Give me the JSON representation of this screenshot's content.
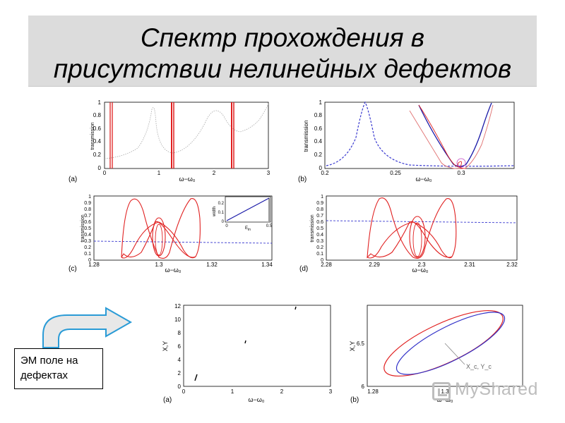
{
  "slide": {
    "title_line1": "Спектр прохождения в",
    "title_line2": "присутствии нелинейных дефектов",
    "em_label_line1": "ЭМ поле на",
    "em_label_line2": "дефектах",
    "watermark": "MyShared",
    "arrow_icon": "curved-arrow-right-icon"
  },
  "colors": {
    "red": "#e02020",
    "blue": "#1a1aa8",
    "dashed_blue": "#3a3ad0",
    "gray": "#9a9a9a"
  },
  "panels": {
    "a": {
      "label": "(a)",
      "ylabel": "transmission",
      "xlabel": "ω−ω₀",
      "xticks": [
        "0",
        "1",
        "2",
        "3"
      ],
      "yticks": [
        "0",
        "0.2",
        "0.4",
        "0.6",
        "0.8",
        "1"
      ]
    },
    "b": {
      "label": "(b)",
      "ylabel": "transmission",
      "xlabel": "ω−ω₀",
      "xticks": [
        "0.2",
        "0.25",
        "0.3"
      ],
      "yticks": [
        "0",
        "0.2",
        "0.4",
        "0.6",
        "0.8",
        "1"
      ]
    },
    "c": {
      "label": "(c)",
      "ylabel": "transmission",
      "xlabel": "ω−ω₀",
      "xticks": [
        "1.28",
        "1.3",
        "1.32",
        "1.34"
      ],
      "yticks": [
        "0",
        "0.1",
        "0.2",
        "0.3",
        "0.4",
        "0.5",
        "0.6",
        "0.7",
        "0.8",
        "0.9",
        "1"
      ],
      "inset": {
        "ylabel": "width",
        "xlabel": "E",
        "xlabel_sub": "in",
        "xticks": [
          "0",
          "0.5"
        ],
        "yticks": [
          "0",
          "0.1",
          "0.2"
        ]
      }
    },
    "d": {
      "label": "(d)",
      "ylabel": "transmission",
      "xlabel": "ω−ω₀",
      "xticks": [
        "2.28",
        "2.29",
        "2.3",
        "2.31",
        "2.32"
      ],
      "yticks": [
        "0",
        "0.1",
        "0.2",
        "0.3",
        "0.4",
        "0.5",
        "0.6",
        "0.7",
        "0.8",
        "0.9",
        "1"
      ]
    },
    "e": {
      "label": "(a)",
      "ylabel": "X,Y",
      "xlabel": "ω−ω₀",
      "xticks": [
        "0",
        "1",
        "2",
        "3"
      ],
      "yticks": [
        "0",
        "2",
        "4",
        "6",
        "8",
        "10",
        "12"
      ]
    },
    "f": {
      "label": "(b)",
      "ylabel": "X,Y",
      "xlabel": "ω−ω₀",
      "xticks": [
        "1.28",
        "1.3"
      ],
      "yticks": [
        "6",
        "6.5"
      ],
      "annotation": "X_c, Y_c"
    }
  }
}
